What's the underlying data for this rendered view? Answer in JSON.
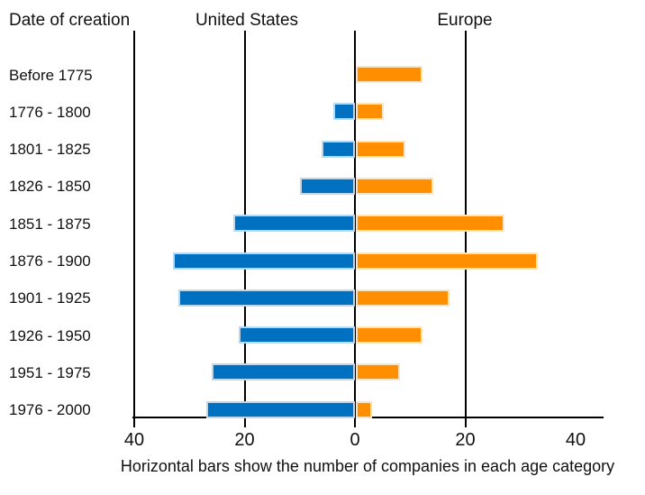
{
  "header": {
    "row_label_title": "Date of creation",
    "left_series_label": "United States",
    "right_series_label": "Europe"
  },
  "caption": "Horizontal bars show the number of companies in each age category",
  "colors": {
    "united_states_bar": "#0070C0",
    "europe_bar": "#FF8F00",
    "axis": "#000000"
  },
  "chart_data": {
    "type": "bar",
    "orientation": "horizontal-diverging",
    "title": "",
    "xlabel": "",
    "ylabel": "Date of creation",
    "categories": [
      "Before 1775",
      "1776 - 1800",
      "1801 - 1825",
      "1826 - 1850",
      "1851 - 1875",
      "1876 - 1900",
      "1901 - 1925",
      "1926 - 1950",
      "1951 - 1975",
      "1976 - 2000"
    ],
    "series": [
      {
        "name": "United States",
        "side": "left",
        "color": "#0070C0",
        "values": [
          0,
          4,
          6,
          10,
          22,
          33,
          32,
          21,
          26,
          27
        ]
      },
      {
        "name": "Europe",
        "side": "right",
        "color": "#FF8F00",
        "values": [
          12,
          5,
          9,
          14,
          27,
          33,
          17,
          12,
          8,
          3
        ]
      }
    ],
    "x_axis": {
      "tick_labels": [
        "40",
        "20",
        "0",
        "20",
        "40"
      ],
      "tick_values": [
        -40,
        -20,
        0,
        20,
        40
      ],
      "gridline_values": [
        -40,
        -20,
        0,
        20
      ],
      "range_shown": [
        -40,
        45
      ],
      "grid": "vertical-lines"
    },
    "legend": "series names shown as column headers above chart",
    "annotation": "Horizontal bars show the number of companies in each age category"
  }
}
